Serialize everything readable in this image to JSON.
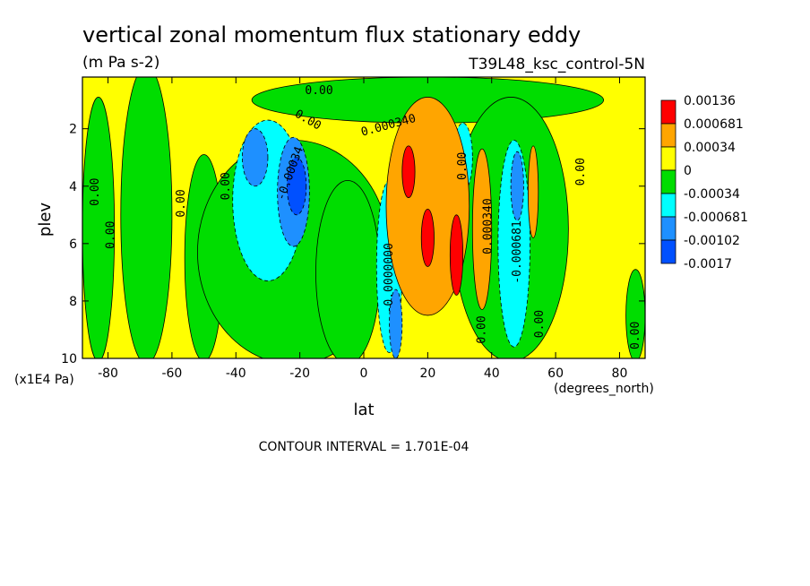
{
  "chart_data": {
    "type": "contour",
    "title": "vertical zonal momentum flux stationary eddy",
    "units": "(m Pa s-2)",
    "run_label": "T39L48_ksc_control-5N",
    "xlabel": "lat",
    "xunits": "(degrees_north)",
    "ylabel": "plev",
    "yunits": "(x1E4 Pa)",
    "xlim": [
      -88,
      88
    ],
    "ylim": [
      10,
      0.2
    ],
    "xticks": [
      "-80",
      "-60",
      "-40",
      "-20",
      "0",
      "20",
      "40",
      "60",
      "80"
    ],
    "xtick_values": [
      -80,
      -60,
      -40,
      -20,
      0,
      20,
      40,
      60,
      80
    ],
    "yticks": [
      "2",
      "4",
      "6",
      "8",
      "10"
    ],
    "ytick_values": [
      2,
      4,
      6,
      8,
      10
    ],
    "contour_interval_text": "CONTOUR INTERVAL = 1.701E-04",
    "legend": {
      "placement": "right",
      "levels": [
        {
          "label": "0.00136",
          "color": "#ff0000"
        },
        {
          "label": "0.000681",
          "color": "#ffa500"
        },
        {
          "label": "0.00034",
          "color": "#ffff00"
        },
        {
          "label": "0",
          "color": "#00dd00"
        },
        {
          "label": "-0.00034",
          "color": "#00ffff"
        },
        {
          "label": "-0.000681",
          "color": "#1e90ff"
        },
        {
          "label": "-0.00102",
          "color": "#0050ff"
        },
        {
          "label": "-0.0017",
          "color": ""
        }
      ]
    },
    "fill_colors": {
      "yellow": "#ffff00",
      "green": "#00dd00",
      "cyan": "#00ffff",
      "lightblue": "#1e90ff",
      "blue": "#0050ff",
      "orange": "#ffa500",
      "red": "#ff0000"
    },
    "regions": [
      {
        "color": "green",
        "cx": -83,
        "cy": 5.5,
        "rx": 5,
        "ry": 4.6
      },
      {
        "color": "green",
        "cx": -68,
        "cy": 5.0,
        "rx": 8,
        "ry": 5.2
      },
      {
        "color": "green",
        "cx": -50,
        "cy": 6.5,
        "rx": 6,
        "ry": 3.6
      },
      {
        "color": "green",
        "cx": -22,
        "cy": 6.3,
        "rx": 30,
        "ry": 3.9
      },
      {
        "color": "green",
        "cx": -5,
        "cy": 7.0,
        "rx": 10,
        "ry": 3.2
      },
      {
        "color": "green",
        "cx": 20,
        "cy": 1.0,
        "rx": 55,
        "ry": 0.8
      },
      {
        "color": "green",
        "cx": 46,
        "cy": 5.5,
        "rx": 18,
        "ry": 4.6
      },
      {
        "color": "green",
        "cx": 85,
        "cy": 8.5,
        "rx": 3,
        "ry": 1.6
      },
      {
        "color": "cyan",
        "cx": -30,
        "cy": 4.5,
        "rx": 11,
        "ry": 2.8
      },
      {
        "color": "lightblue",
        "cx": -34,
        "cy": 3.0,
        "rx": 4,
        "ry": 1.0
      },
      {
        "color": "lightblue",
        "cx": -22,
        "cy": 4.2,
        "rx": 5,
        "ry": 1.9
      },
      {
        "color": "blue",
        "cx": -21,
        "cy": 4.0,
        "rx": 3,
        "ry": 1.0
      },
      {
        "color": "cyan",
        "cx": 8,
        "cy": 6.8,
        "rx": 4,
        "ry": 3.0
      },
      {
        "color": "lightblue",
        "cx": 10,
        "cy": 8.8,
        "rx": 2,
        "ry": 1.2
      },
      {
        "color": "cyan",
        "cx": 31,
        "cy": 3.0,
        "rx": 3,
        "ry": 1.2
      },
      {
        "color": "cyan",
        "cx": 47,
        "cy": 6.0,
        "rx": 5,
        "ry": 3.6
      },
      {
        "color": "lightblue",
        "cx": 48,
        "cy": 4.0,
        "rx": 2,
        "ry": 1.2
      },
      {
        "color": "orange",
        "cx": 20,
        "cy": 4.7,
        "rx": 13,
        "ry": 3.8
      },
      {
        "color": "orange",
        "cx": 37,
        "cy": 5.5,
        "rx": 3,
        "ry": 2.8
      },
      {
        "color": "orange",
        "cx": 53,
        "cy": 4.2,
        "rx": 1.6,
        "ry": 1.6
      },
      {
        "color": "red",
        "cx": 14,
        "cy": 3.5,
        "rx": 2,
        "ry": 0.9
      },
      {
        "color": "red",
        "cx": 20,
        "cy": 5.8,
        "rx": 2,
        "ry": 1.0
      },
      {
        "color": "red",
        "cx": 29,
        "cy": 6.4,
        "rx": 2,
        "ry": 1.4
      }
    ],
    "contour_labels": [
      {
        "text": "0.00",
        "x": -83,
        "y": 4.2,
        "angle": -90
      },
      {
        "text": "0.00",
        "x": -78,
        "y": 5.7,
        "angle": -90
      },
      {
        "text": "0.00",
        "x": -56,
        "y": 4.6,
        "angle": -90
      },
      {
        "text": "0.00",
        "x": -42,
        "y": 4.0,
        "angle": -90
      },
      {
        "text": "0.00",
        "x": -18,
        "y": 1.8,
        "angle": 30
      },
      {
        "text": "0.00",
        "x": -14,
        "y": 0.8,
        "angle": 0
      },
      {
        "text": "-0.00034",
        "x": -22,
        "y": 3.6,
        "angle": -70
      },
      {
        "text": "0.000340",
        "x": 8,
        "y": 2.0,
        "angle": -15
      },
      {
        "text": "-0.0000000",
        "x": 9,
        "y": 7.2,
        "angle": -90
      },
      {
        "text": "0.00",
        "x": 32,
        "y": 3.3,
        "angle": -90
      },
      {
        "text": "0.000340",
        "x": 40,
        "y": 5.4,
        "angle": -90
      },
      {
        "text": "0.00",
        "x": 38,
        "y": 9.0,
        "angle": -90
      },
      {
        "text": "-0.000681",
        "x": 49,
        "y": 6.3,
        "angle": -90
      },
      {
        "text": "0.00",
        "x": 56,
        "y": 8.8,
        "angle": -90
      },
      {
        "text": "0.00",
        "x": 69,
        "y": 3.5,
        "angle": -90
      },
      {
        "text": "0.00",
        "x": 86,
        "y": 9.2,
        "angle": -90
      }
    ]
  }
}
